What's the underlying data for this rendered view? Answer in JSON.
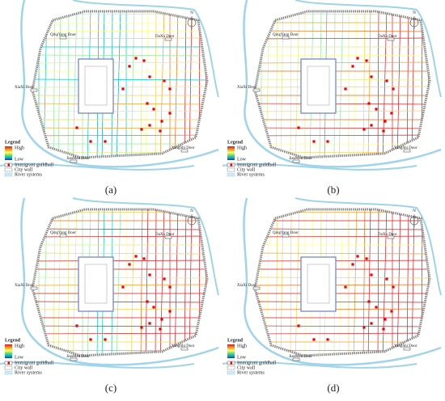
{
  "panels": [
    {
      "label": "(a)"
    },
    {
      "label": "(b)"
    },
    {
      "label": "(c)"
    },
    {
      "label": "(d)"
    }
  ],
  "compass": "N",
  "doors": [
    "QingYang Door",
    "DaXu Door",
    "XiaXi Door",
    "JianMen Door",
    "YangShi Door"
  ],
  "legend": {
    "title": "Legend",
    "high": "High",
    "low": "Low",
    "guildhall": "Immigrant guildhall",
    "wall": "City wall",
    "river": "River systems"
  }
}
